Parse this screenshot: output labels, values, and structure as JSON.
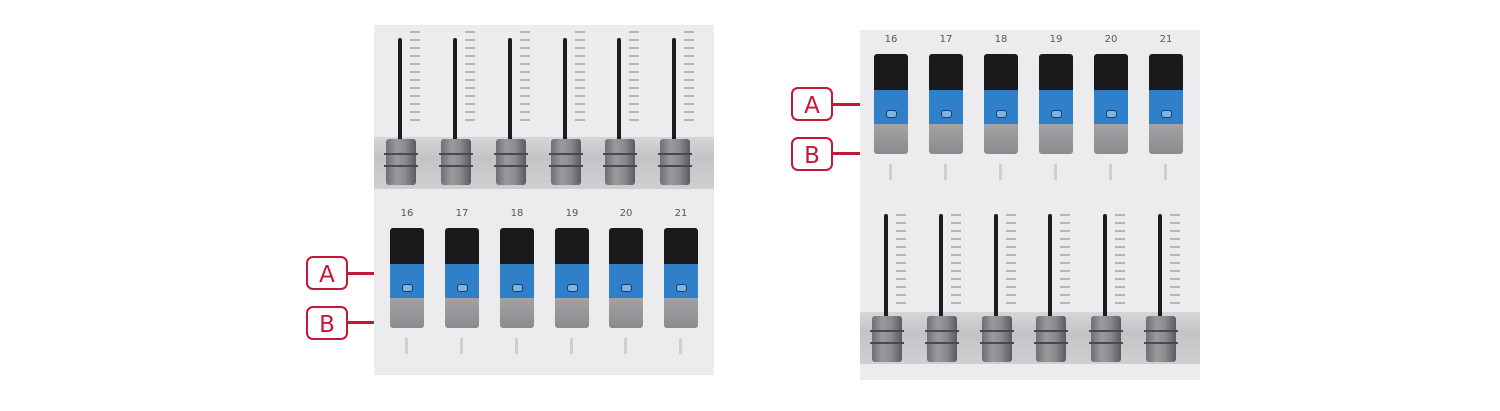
{
  "channels": [
    "16",
    "17",
    "18",
    "19",
    "20",
    "21"
  ],
  "callouts": {
    "a": "A",
    "b": "B"
  },
  "colors": {
    "accent": "#c2183a",
    "key_blue": "#2f7fc9"
  },
  "icons": {
    "fader": "fader-slider-icon",
    "key": "channel-key-icon"
  }
}
